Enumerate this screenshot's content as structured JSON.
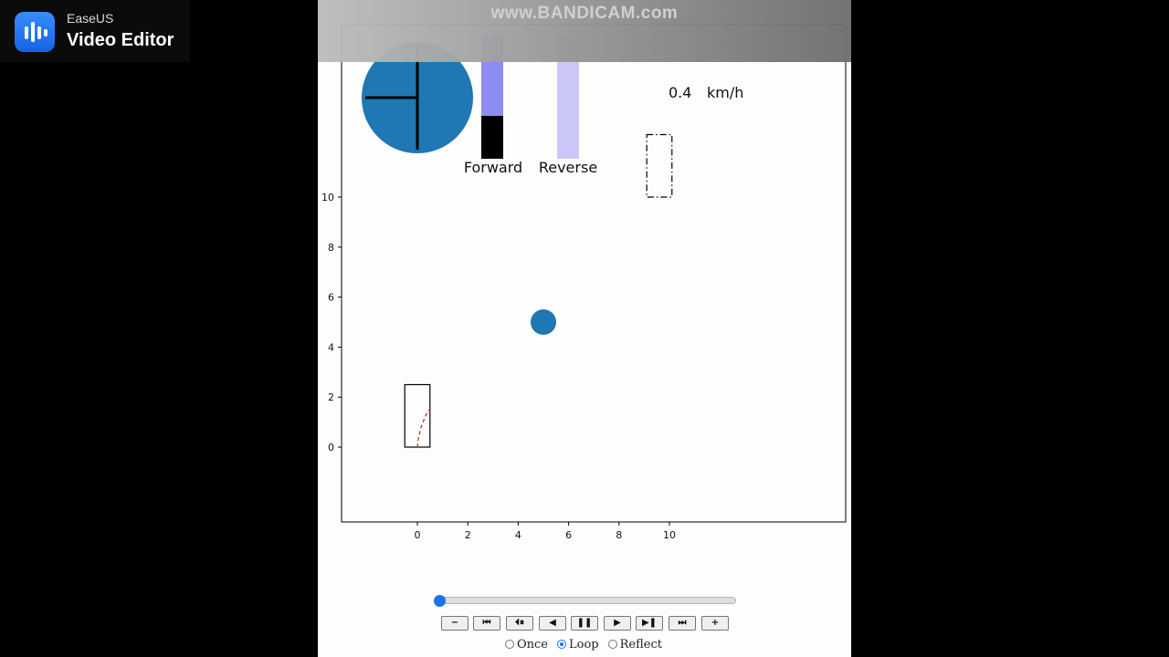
{
  "watermark": {
    "brand": "EaseUS",
    "product": "Video Editor",
    "icon": "waveform-icon",
    "accent": "#1a6ff0"
  },
  "recorder_watermark": {
    "text": "www.BANDICAM.com"
  },
  "chart_data": {
    "type": "scatter",
    "xlim": [
      -3,
      17
    ],
    "ylim": [
      -3,
      17
    ],
    "x_ticks": [
      "0",
      "2",
      "4",
      "6",
      "8",
      "10"
    ],
    "y_ticks": [
      "0",
      "2",
      "4",
      "6",
      "8",
      "10"
    ],
    "grid": false,
    "objects": {
      "vehicle_rect": {
        "x": [
          0,
          1
        ],
        "y": [
          0,
          2.5
        ],
        "color": "#000000"
      },
      "trajectory": {
        "style": "dashed",
        "color": "#d62728",
        "x": [
          0,
          0.05,
          0.15,
          0.3,
          0.45
        ],
        "y": [
          0,
          0.4,
          0.8,
          1.2,
          1.5
        ]
      },
      "target_rect": {
        "x": [
          9.6,
          10.6
        ],
        "y": [
          10,
          12.5
        ],
        "style": "dash-dot",
        "color": "#000000"
      },
      "obstacle": {
        "x": 5,
        "y": 5,
        "color": "#1f77b4"
      }
    },
    "steering_wheel": {
      "color": "#1f77b4"
    },
    "throttle_bars": [
      {
        "label": "Forward",
        "level": 0.35,
        "color": "#8d8cf2",
        "fill_color": "#000000"
      },
      {
        "label": "Reverse",
        "level": 0,
        "color": "#c9c8f8",
        "fill_color": "#000000"
      }
    ],
    "speed": {
      "value": "0.4",
      "unit": "km/h"
    }
  },
  "player": {
    "slider_value": 0,
    "buttons": [
      {
        "name": "decrease-speed-button",
        "glyph": "−"
      },
      {
        "name": "first-frame-button",
        "glyph": "⏮"
      },
      {
        "name": "step-back-button",
        "glyph": "⏴⏸"
      },
      {
        "name": "play-reverse-button",
        "glyph": "◀"
      },
      {
        "name": "pause-button",
        "glyph": "❚❚"
      },
      {
        "name": "play-button",
        "glyph": "▶"
      },
      {
        "name": "step-forward-button",
        "glyph": "▶❚"
      },
      {
        "name": "last-frame-button",
        "glyph": "⏭"
      },
      {
        "name": "increase-speed-button",
        "glyph": "+"
      }
    ],
    "modes": [
      "Once",
      "Loop",
      "Reflect"
    ],
    "selected_mode": "Loop"
  }
}
